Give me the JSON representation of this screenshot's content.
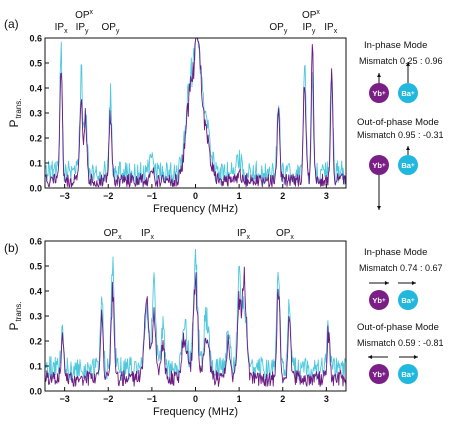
{
  "colors": {
    "yb": "#7a1f86",
    "ba": "#22b7dc",
    "purple_trace": "#6b1a82",
    "cyan_trace": "#4fc8dc"
  },
  "chart_data": [
    {
      "panel": "(a)",
      "type": "line",
      "xlabel": "Frequency (MHz)",
      "ylabel": "P",
      "ylabel_sub": "trans.",
      "xlim": [
        -3.45,
        3.45
      ],
      "ylim": [
        0,
        0.6
      ],
      "xticks": [
        -3,
        -2,
        -1,
        0,
        1,
        2,
        3
      ],
      "yticks": [
        0.0,
        0.1,
        0.2,
        0.3,
        0.4,
        0.5,
        0.6
      ],
      "ytick_labels": [
        "0.0",
        "0.1",
        "0.2",
        "0.3",
        "0.4",
        "0.5",
        "0.6"
      ],
      "baseline": {
        "cyan": 0.06,
        "purple": 0.03,
        "cyan_noise": 0.06,
        "purple_noise": 0.035
      },
      "peak_labels": [
        {
          "text": "IP",
          "sub": "x",
          "x": -3.08
        },
        {
          "text": "OP",
          "sub": "x",
          "x": -2.6,
          "text2": "IP",
          "sub2": "y"
        },
        {
          "text": "OP",
          "sub": "y",
          "x": -1.95
        },
        {
          "text": "OP",
          "sub": "y",
          "x": 1.9
        },
        {
          "text": "OP",
          "sub": "x",
          "x": 2.6,
          "text2": "IP",
          "sub2": "y"
        },
        {
          "text": "IP",
          "sub": "x",
          "x": 3.1
        }
      ],
      "peaks": [
        {
          "x": -3.08,
          "cyan": 0.58,
          "purple": 0.52,
          "w": 0.025
        },
        {
          "x": -2.62,
          "cyan": 0.5,
          "purple": 0.38,
          "w": 0.03
        },
        {
          "x": -2.52,
          "cyan": 0.35,
          "purple": 0.28,
          "w": 0.03
        },
        {
          "x": -1.95,
          "cyan": 0.36,
          "purple": 0.3,
          "w": 0.03
        },
        {
          "x": -1.0,
          "cyan": 0.14,
          "purple": 0.08,
          "w": 0.04
        },
        {
          "x": -0.12,
          "cyan": 0.42,
          "purple": 0.38,
          "w": 0.1
        },
        {
          "x": 0.05,
          "cyan": 0.5,
          "purple": 0.5,
          "w": 0.07
        },
        {
          "x": 0.22,
          "cyan": 0.3,
          "purple": 0.25,
          "w": 0.1
        },
        {
          "x": 1.0,
          "cyan": 0.13,
          "purple": 0.07,
          "w": 0.04
        },
        {
          "x": 1.9,
          "cyan": 0.35,
          "purple": 0.3,
          "w": 0.03
        },
        {
          "x": 2.5,
          "cyan": 0.48,
          "purple": 0.42,
          "w": 0.03
        },
        {
          "x": 2.68,
          "cyan": 0.45,
          "purple": 0.6,
          "w": 0.025
        },
        {
          "x": 3.12,
          "cyan": 0.5,
          "purple": 0.46,
          "w": 0.025
        }
      ]
    },
    {
      "panel": "(b)",
      "type": "line",
      "xlabel": "Frequency (MHz)",
      "ylabel": "P",
      "ylabel_sub": "trans.",
      "xlim": [
        -3.45,
        3.45
      ],
      "ylim": [
        0,
        0.6
      ],
      "xticks": [
        -3,
        -2,
        -1,
        0,
        1,
        2,
        3
      ],
      "yticks": [
        0.0,
        0.1,
        0.2,
        0.3,
        0.4,
        0.5,
        0.6
      ],
      "ytick_labels": [
        "0.0",
        "0.1",
        "0.2",
        "0.3",
        "0.4",
        "0.5",
        "0.6"
      ],
      "baseline": {
        "cyan": 0.09,
        "purple": 0.05,
        "cyan_noise": 0.06,
        "purple_noise": 0.04
      },
      "peak_labels": [
        {
          "text": "OP",
          "sub": "x",
          "x": -1.9
        },
        {
          "text": "IP",
          "sub": "x",
          "x": -1.1
        },
        {
          "text": "IP",
          "sub": "x",
          "x": 1.1
        },
        {
          "text": "OP",
          "sub": "x",
          "x": 2.05
        }
      ],
      "peaks": [
        {
          "x": -3.05,
          "cyan": 0.27,
          "purple": 0.22,
          "w": 0.03
        },
        {
          "x": -2.15,
          "cyan": 0.38,
          "purple": 0.32,
          "w": 0.03
        },
        {
          "x": -1.9,
          "cyan": 0.5,
          "purple": 0.4,
          "w": 0.035
        },
        {
          "x": -1.12,
          "cyan": 0.33,
          "purple": 0.4,
          "w": 0.05
        },
        {
          "x": -0.95,
          "cyan": 0.45,
          "purple": 0.3,
          "w": 0.04
        },
        {
          "x": -0.75,
          "cyan": 0.25,
          "purple": 0.2,
          "w": 0.04
        },
        {
          "x": -0.25,
          "cyan": 0.28,
          "purple": 0.22,
          "w": 0.06
        },
        {
          "x": 0.0,
          "cyan": 0.52,
          "purple": 0.45,
          "w": 0.05
        },
        {
          "x": 0.25,
          "cyan": 0.3,
          "purple": 0.22,
          "w": 0.06
        },
        {
          "x": 0.75,
          "cyan": 0.25,
          "purple": 0.2,
          "w": 0.04
        },
        {
          "x": 1.0,
          "cyan": 0.45,
          "purple": 0.35,
          "w": 0.04
        },
        {
          "x": 1.12,
          "cyan": 0.35,
          "purple": 0.45,
          "w": 0.05
        },
        {
          "x": 1.9,
          "cyan": 0.48,
          "purple": 0.42,
          "w": 0.035
        },
        {
          "x": 2.15,
          "cyan": 0.33,
          "purple": 0.3,
          "w": 0.03
        },
        {
          "x": 3.05,
          "cyan": 0.28,
          "purple": 0.24,
          "w": 0.03
        }
      ]
    }
  ],
  "annotations": {
    "a": {
      "in_phase_title": "In-phase Mode",
      "in_phase_mismatch": "Mismatch 0.25 : 0.96",
      "out_phase_title": "Out-of-phase Mode",
      "out_phase_mismatch": "Mismatch 0.95 : -0.31"
    },
    "b": {
      "in_phase_title": "In-phase Mode",
      "in_phase_mismatch": "Mismatch 0.74 : 0.67",
      "out_phase_title": "Out-of-phase Mode",
      "out_phase_mismatch": "Mismatch 0.59 : -0.81"
    },
    "yb_label": "Yb",
    "ba_label": "Ba",
    "ion_charge": "+"
  }
}
